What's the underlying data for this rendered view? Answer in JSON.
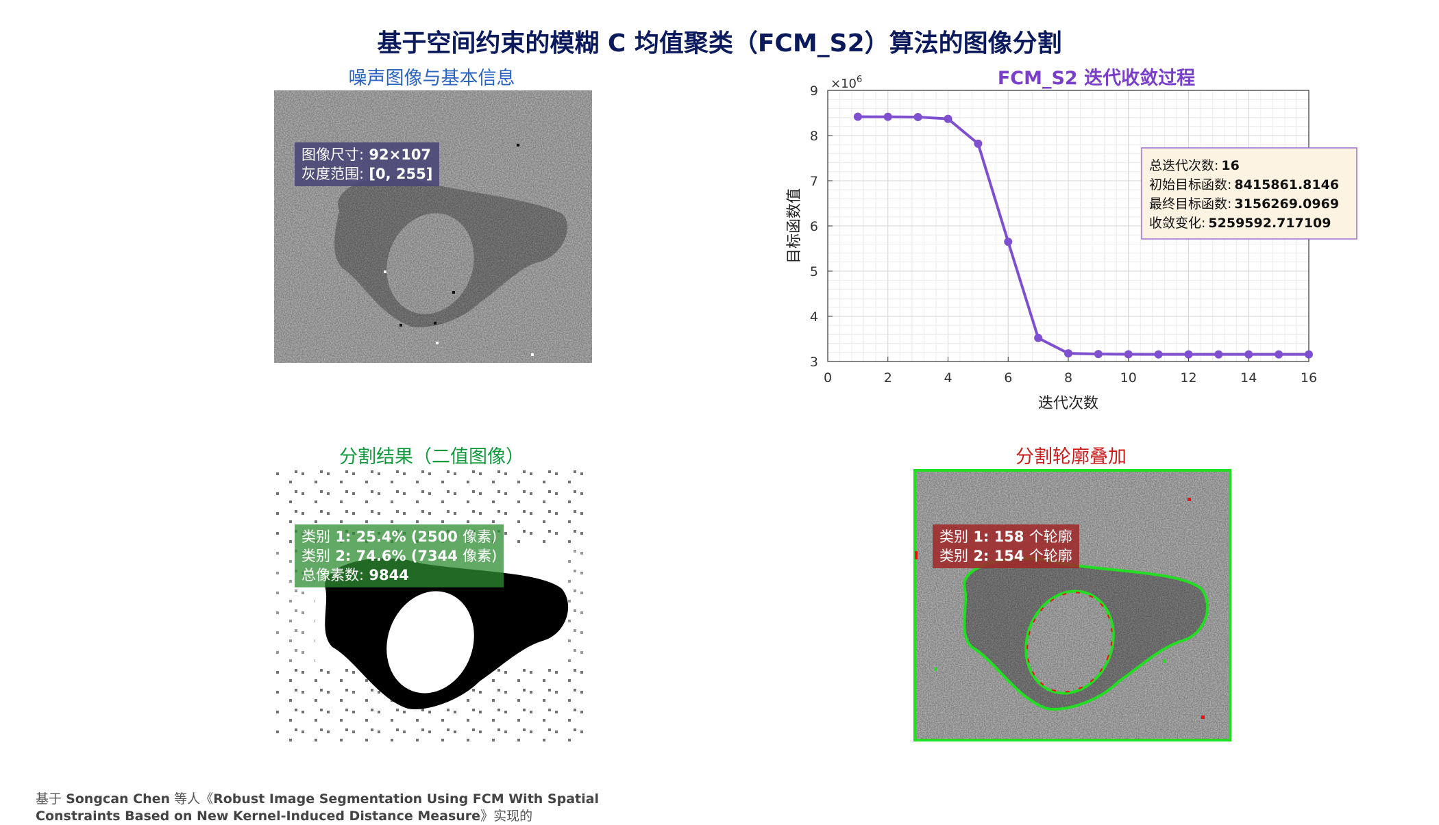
{
  "title": "基于空间约束的模糊 C 均值聚类（FCM_S2）算法的图像分割",
  "panels": {
    "noisy": {
      "title": "噪声图像与基本信息",
      "info": [
        {
          "label": "图像尺寸:",
          "value": "92×107"
        },
        {
          "label": "灰度范围:",
          "value": "[0, 255]"
        }
      ]
    },
    "segmentation": {
      "title": "分割结果（二值图像）",
      "info": [
        {
          "label": "类别",
          "value": "1: 25.4% (2500",
          "suffix": "像素)"
        },
        {
          "label": "类别",
          "value": "2: 74.6% (7344",
          "suffix": "像素)"
        },
        {
          "label": "总像素数:",
          "value": "9844",
          "suffix": ""
        }
      ]
    },
    "overlay": {
      "title": "分割轮廓叠加",
      "info": [
        {
          "label": "类别",
          "value": "1: 158",
          "suffix": "个轮廓"
        },
        {
          "label": "类别",
          "value": "2: 154",
          "suffix": "个轮廓"
        }
      ]
    }
  },
  "chart_data": {
    "type": "line",
    "title": "FCM_S2 迭代收敛过程",
    "xlabel": "迭代次数",
    "ylabel": "目标函数值",
    "y_exponent_label": "×10",
    "y_exponent": "6",
    "xlim": [
      0,
      16
    ],
    "ylim": [
      3,
      9
    ],
    "xticks": [
      0,
      2,
      4,
      6,
      8,
      10,
      12,
      14,
      16
    ],
    "yticks": [
      3,
      4,
      5,
      6,
      7,
      8,
      9
    ],
    "grid": true,
    "series": [
      {
        "color": "#7e4fcf",
        "x": [
          1,
          2,
          3,
          4,
          5,
          6,
          7,
          8,
          9,
          10,
          11,
          12,
          13,
          14,
          15,
          16
        ],
        "y": [
          8.4159,
          8.414,
          8.41,
          8.37,
          7.82,
          5.65,
          3.52,
          3.18,
          3.165,
          3.16,
          3.158,
          3.157,
          3.157,
          3.1563,
          3.1563,
          3.1563
        ]
      }
    ],
    "annotation": {
      "lines": [
        {
          "label": "总迭代次数:",
          "value": "16"
        },
        {
          "label": "初始目标函数:",
          "value": "8415861.8146"
        },
        {
          "label": "最终目标函数:",
          "value": "3156269.0969"
        },
        {
          "label": "收敛变化:",
          "value": "5259592.717109"
        }
      ]
    }
  },
  "footer": {
    "line1": {
      "a": "基于",
      "b": "Songcan Chen",
      "c": "等人《",
      "d": "Robust Image Segmentation Using FCM With Spatial"
    },
    "line2": {
      "d": "Constraints Based on New Kernel-Induced Distance Measure",
      "e": "》实现的"
    }
  }
}
